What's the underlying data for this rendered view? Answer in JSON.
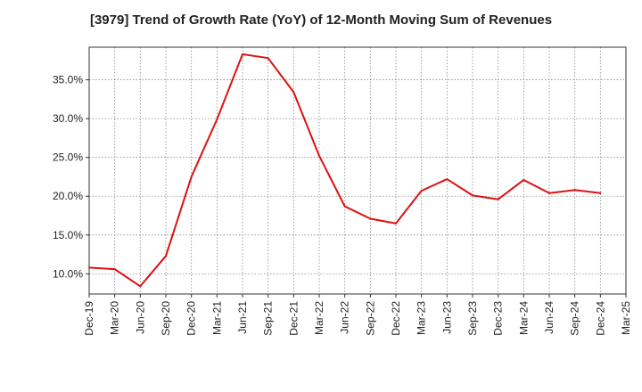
{
  "chart_data": {
    "type": "line",
    "title": "[3979]  Trend of Growth Rate (YoY) of 12-Month Moving Sum of Revenues",
    "xlabel": "",
    "ylabel": "",
    "x": [
      "Dec-19",
      "Mar-20",
      "Jun-20",
      "Sep-20",
      "Dec-20",
      "Mar-21",
      "Jun-21",
      "Sep-21",
      "Dec-21",
      "Mar-22",
      "Jun-22",
      "Sep-22",
      "Dec-22",
      "Mar-23",
      "Jun-23",
      "Sep-23",
      "Dec-23",
      "Mar-24",
      "Jun-24",
      "Sep-24",
      "Dec-24"
    ],
    "x_ticks": [
      "Dec-19",
      "Mar-20",
      "Jun-20",
      "Sep-20",
      "Dec-20",
      "Mar-21",
      "Jun-21",
      "Sep-21",
      "Dec-21",
      "Mar-22",
      "Jun-22",
      "Sep-22",
      "Dec-22",
      "Mar-23",
      "Jun-23",
      "Sep-23",
      "Dec-23",
      "Mar-24",
      "Jun-24",
      "Sep-24",
      "Dec-24",
      "Mar-25"
    ],
    "series": [
      {
        "values": [
          10.8,
          10.6,
          8.4,
          12.3,
          22.5,
          29.9,
          38.3,
          37.8,
          33.4,
          25.2,
          18.7,
          17.1,
          16.5,
          20.7,
          22.2,
          20.1,
          19.6,
          22.1,
          20.4,
          20.8,
          20.4
        ]
      }
    ],
    "y_ticks": [
      "10.0%",
      "15.0%",
      "20.0%",
      "25.0%",
      "30.0%",
      "35.0%"
    ],
    "y_tick_values": [
      10,
      15,
      20,
      25,
      30,
      35
    ],
    "ylim": [
      7.4,
      39.2
    ],
    "grid": true,
    "line_color": "#dd1111"
  }
}
